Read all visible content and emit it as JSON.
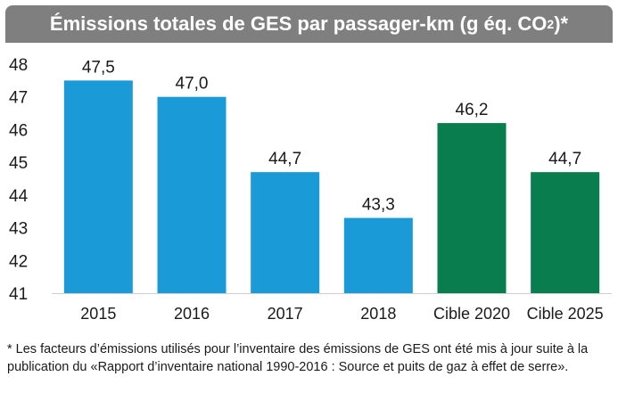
{
  "title": {
    "main": "Émissions totales de GES par passager-km (g éq. CO",
    "subscript": "2",
    "suffix": ")*"
  },
  "chart_data": {
    "type": "bar",
    "title": "Émissions totales de GES par passager-km (g éq. CO2)*",
    "xlabel": "",
    "ylabel": "",
    "categories": [
      "2015",
      "2016",
      "2017",
      "2018",
      "Cible 2020",
      "Cible 2025"
    ],
    "values": [
      47.5,
      47.0,
      44.7,
      43.3,
      46.2,
      44.7
    ],
    "value_labels": [
      "47,5",
      "47,0",
      "44,7",
      "43,3",
      "46,2",
      "44,7"
    ],
    "bar_colors": [
      "#1a9bd7",
      "#1a9bd7",
      "#1a9bd7",
      "#1a9bd7",
      "#0a7d4f",
      "#0a7d4f"
    ],
    "ylim": [
      41,
      48
    ],
    "yticks": [
      41,
      42,
      43,
      44,
      45,
      46,
      47,
      48
    ],
    "grid": false,
    "legend": "none"
  },
  "footnote": "* Les facteurs d’émissions utilisés pour l’inventaire des émissions de GES ont été mis à jour suite à la publication du «Rapport d’inventaire national 1990-2016 : Source et puits de gaz à effet de serre»."
}
